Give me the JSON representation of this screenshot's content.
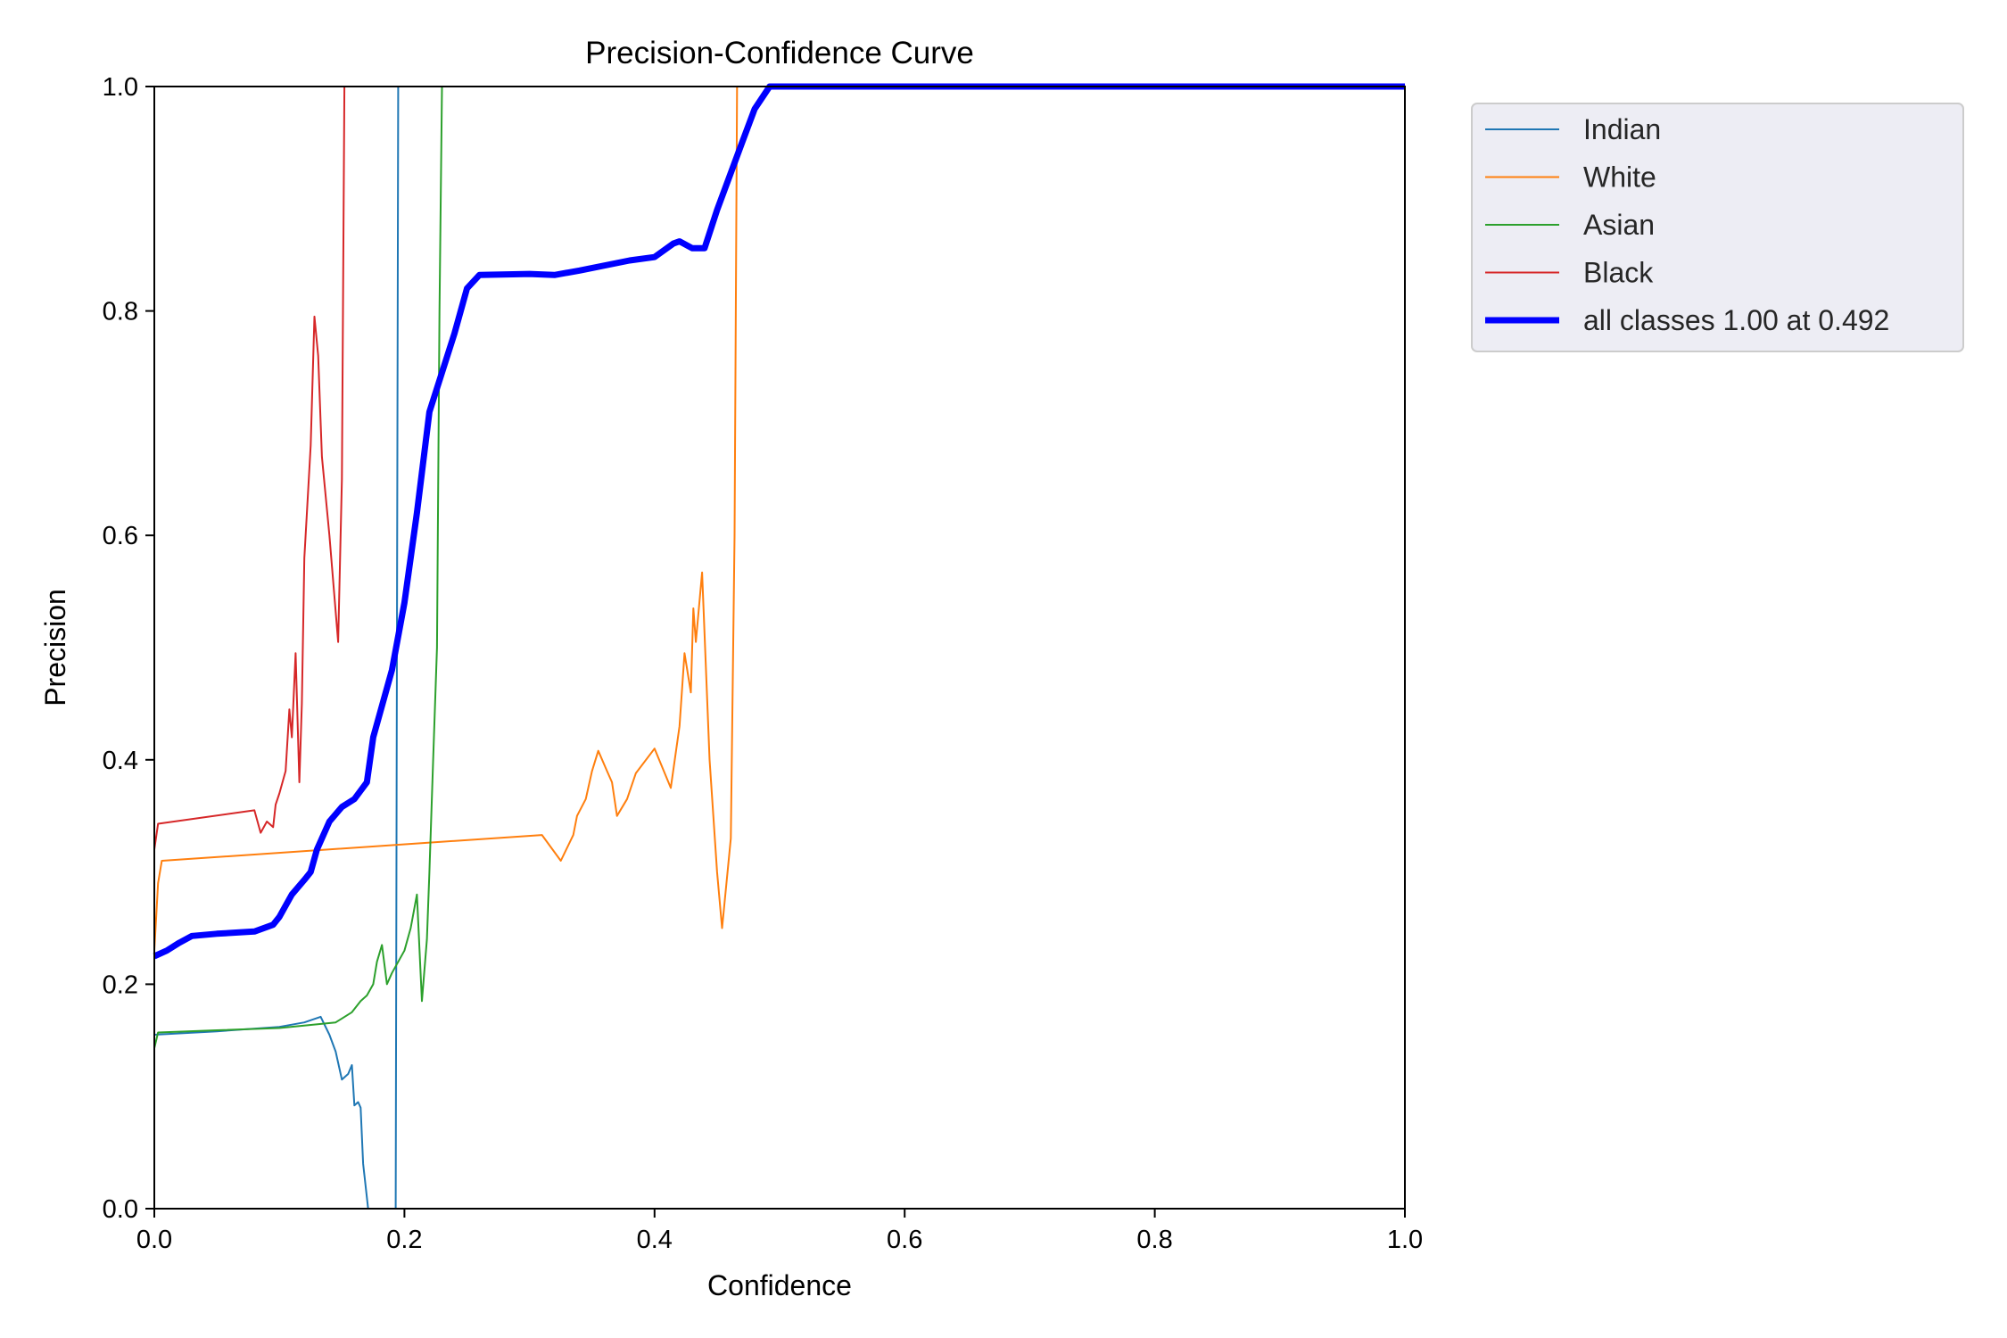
{
  "chart_data": {
    "type": "line",
    "title": "Precision-Confidence Curve",
    "xlabel": "Confidence",
    "ylabel": "Precision",
    "xlim": [
      0,
      1
    ],
    "ylim": [
      0,
      1
    ],
    "x_ticks": [
      "0.0",
      "0.2",
      "0.4",
      "0.6",
      "0.8",
      "1.0"
    ],
    "y_ticks": [
      "0.0",
      "0.2",
      "0.4",
      "0.6",
      "0.8",
      "1.0"
    ],
    "grid": false,
    "legend_position": "outside-top-right",
    "series": [
      {
        "name": "Indian",
        "color": "#1f77b4",
        "line_width": 2,
        "points": [
          [
            0,
            0.155
          ],
          [
            0.05,
            0.158
          ],
          [
            0.1,
            0.162
          ],
          [
            0.12,
            0.166
          ],
          [
            0.133,
            0.171
          ],
          [
            0.14,
            0.155
          ],
          [
            0.145,
            0.14
          ],
          [
            0.15,
            0.115
          ],
          [
            0.155,
            0.12
          ],
          [
            0.158,
            0.128
          ],
          [
            0.16,
            0.092
          ],
          [
            0.163,
            0.095
          ],
          [
            0.165,
            0.09
          ],
          [
            0.167,
            0.04
          ],
          [
            0.171,
            0.0
          ],
          [
            0.193,
            0.0
          ],
          [
            0.194,
            0.5
          ],
          [
            0.195,
            1.0
          ],
          [
            1.0,
            1.0
          ]
        ]
      },
      {
        "name": "White",
        "color": "#ff7f0e",
        "line_width": 2,
        "points": [
          [
            0,
            0.23
          ],
          [
            0.003,
            0.29
          ],
          [
            0.006,
            0.31
          ],
          [
            0.31,
            0.333
          ],
          [
            0.325,
            0.31
          ],
          [
            0.335,
            0.333
          ],
          [
            0.338,
            0.35
          ],
          [
            0.345,
            0.365
          ],
          [
            0.35,
            0.39
          ],
          [
            0.355,
            0.408
          ],
          [
            0.362,
            0.39
          ],
          [
            0.366,
            0.38
          ],
          [
            0.37,
            0.35
          ],
          [
            0.378,
            0.365
          ],
          [
            0.385,
            0.388
          ],
          [
            0.4,
            0.41
          ],
          [
            0.413,
            0.375
          ],
          [
            0.42,
            0.43
          ],
          [
            0.424,
            0.495
          ],
          [
            0.429,
            0.46
          ],
          [
            0.431,
            0.535
          ],
          [
            0.433,
            0.505
          ],
          [
            0.438,
            0.567
          ],
          [
            0.444,
            0.4
          ],
          [
            0.45,
            0.3
          ],
          [
            0.454,
            0.25
          ],
          [
            0.461,
            0.33
          ],
          [
            0.464,
            0.6
          ],
          [
            0.466,
            1.0
          ],
          [
            1.0,
            1.0
          ]
        ]
      },
      {
        "name": "Asian",
        "color": "#2ca02c",
        "line_width": 2,
        "points": [
          [
            0,
            0.143
          ],
          [
            0.003,
            0.157
          ],
          [
            0.05,
            0.159
          ],
          [
            0.1,
            0.161
          ],
          [
            0.145,
            0.166
          ],
          [
            0.158,
            0.175
          ],
          [
            0.165,
            0.185
          ],
          [
            0.17,
            0.19
          ],
          [
            0.175,
            0.2
          ],
          [
            0.178,
            0.22
          ],
          [
            0.182,
            0.235
          ],
          [
            0.186,
            0.2
          ],
          [
            0.19,
            0.21
          ],
          [
            0.2,
            0.23
          ],
          [
            0.205,
            0.25
          ],
          [
            0.21,
            0.28
          ],
          [
            0.214,
            0.185
          ],
          [
            0.218,
            0.24
          ],
          [
            0.22,
            0.3
          ],
          [
            0.223,
            0.4
          ],
          [
            0.226,
            0.5
          ],
          [
            0.228,
            0.8
          ],
          [
            0.23,
            1.0
          ],
          [
            1.0,
            1.0
          ]
        ]
      },
      {
        "name": "Black",
        "color": "#d62728",
        "line_width": 2,
        "points": [
          [
            0,
            0.32
          ],
          [
            0.003,
            0.343
          ],
          [
            0.08,
            0.355
          ],
          [
            0.085,
            0.335
          ],
          [
            0.09,
            0.345
          ],
          [
            0.095,
            0.34
          ],
          [
            0.097,
            0.36
          ],
          [
            0.1,
            0.37
          ],
          [
            0.105,
            0.39
          ],
          [
            0.108,
            0.445
          ],
          [
            0.11,
            0.42
          ],
          [
            0.113,
            0.495
          ],
          [
            0.116,
            0.38
          ],
          [
            0.118,
            0.45
          ],
          [
            0.12,
            0.58
          ],
          [
            0.125,
            0.68
          ],
          [
            0.128,
            0.795
          ],
          [
            0.131,
            0.76
          ],
          [
            0.134,
            0.67
          ],
          [
            0.14,
            0.6
          ],
          [
            0.147,
            0.505
          ],
          [
            0.15,
            0.65
          ],
          [
            0.152,
            1.0
          ],
          [
            1.0,
            1.0
          ]
        ]
      },
      {
        "name": "all classes 1.00 at 0.492",
        "color": "#0000ff",
        "line_width": 7,
        "points": [
          [
            0,
            0.225
          ],
          [
            0.01,
            0.23
          ],
          [
            0.02,
            0.237
          ],
          [
            0.03,
            0.243
          ],
          [
            0.05,
            0.245
          ],
          [
            0.08,
            0.247
          ],
          [
            0.095,
            0.253
          ],
          [
            0.1,
            0.26
          ],
          [
            0.11,
            0.28
          ],
          [
            0.12,
            0.293
          ],
          [
            0.125,
            0.3
          ],
          [
            0.13,
            0.32
          ],
          [
            0.14,
            0.345
          ],
          [
            0.15,
            0.358
          ],
          [
            0.16,
            0.365
          ],
          [
            0.17,
            0.38
          ],
          [
            0.175,
            0.42
          ],
          [
            0.19,
            0.48
          ],
          [
            0.2,
            0.54
          ],
          [
            0.21,
            0.62
          ],
          [
            0.22,
            0.71
          ],
          [
            0.24,
            0.78
          ],
          [
            0.25,
            0.82
          ],
          [
            0.26,
            0.832
          ],
          [
            0.3,
            0.833
          ],
          [
            0.32,
            0.832
          ],
          [
            0.34,
            0.836
          ],
          [
            0.38,
            0.845
          ],
          [
            0.4,
            0.848
          ],
          [
            0.415,
            0.86
          ],
          [
            0.42,
            0.862
          ],
          [
            0.43,
            0.856
          ],
          [
            0.44,
            0.856
          ],
          [
            0.45,
            0.89
          ],
          [
            0.46,
            0.92
          ],
          [
            0.47,
            0.95
          ],
          [
            0.48,
            0.98
          ],
          [
            0.492,
            1.0
          ],
          [
            1.0,
            1.0
          ]
        ]
      }
    ]
  }
}
